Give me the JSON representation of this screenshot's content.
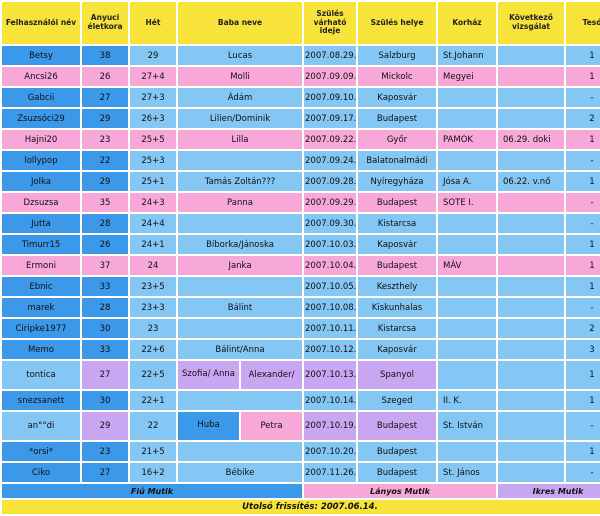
{
  "colors": {
    "header": "#f7e33a",
    "fiu": "#84c6f4",
    "lany": "#f7a7d8",
    "ikres": "#c9a6f2",
    "blue": "#3c98e8"
  },
  "headers": [
    "Felhasználói név",
    "Anyuci életkora",
    "Hét",
    "Baba neve",
    "Szülés várható ideje",
    "Szülés helye",
    "Korház",
    "Következő vizsgálat",
    "Tesó"
  ],
  "rows": [
    {
      "user": "Betsy",
      "age": "38",
      "week": "29",
      "baby": "Lucas",
      "date": "2007.08.29.",
      "place": "Salzburg",
      "hospital": "St.Johann",
      "exam": "",
      "siblings": "1",
      "type": "fiu"
    },
    {
      "user": "Ancsi26",
      "age": "26",
      "week": "27+4",
      "baby": "Molli",
      "date": "2007.09.09.",
      "place": "Mickolc",
      "hospital": "Megyei",
      "exam": "",
      "siblings": "1",
      "type": "lany"
    },
    {
      "user": "Gabcii",
      "age": "27",
      "week": "27+3",
      "baby": "Ádám",
      "date": "2007.09.10.",
      "place": "Kaposvár",
      "hospital": "",
      "exam": "",
      "siblings": "-",
      "type": "fiu"
    },
    {
      "user": "Zsuzsóci29",
      "age": "29",
      "week": "26+3",
      "baby": "Lilien/Dominik",
      "date": "2007.09.17.",
      "place": "Budapest",
      "hospital": "",
      "exam": "",
      "siblings": "2",
      "type": "fiu"
    },
    {
      "user": "Hajni20",
      "age": "23",
      "week": "25+5",
      "baby": "Lilla",
      "date": "2007.09.22.",
      "place": "Győr",
      "hospital": "PAMOK",
      "exam": "06.29. doki",
      "siblings": "1",
      "type": "lany"
    },
    {
      "user": "lollypop",
      "age": "22",
      "week": "25+3",
      "baby": "",
      "date": "2007.09.24.",
      "place": "Balatonalmádi",
      "hospital": "",
      "exam": "",
      "siblings": "-",
      "type": "fiu"
    },
    {
      "user": "Jolka",
      "age": "29",
      "week": "25+1",
      "baby": "Tamás Zoltán???",
      "date": "2007.09.28.",
      "place": "Nyíregyháza",
      "hospital": "Jósa A.",
      "exam": "06.22. v.nő",
      "siblings": "1",
      "type": "fiu"
    },
    {
      "user": "Dzsuzsa",
      "age": "35",
      "week": "24+3",
      "baby": "Panna",
      "date": "2007.09.29.",
      "place": "Budapest",
      "hospital": "SOTE I.",
      "exam": "",
      "siblings": "-",
      "type": "lany"
    },
    {
      "user": "Jutta",
      "age": "28",
      "week": "24+4",
      "baby": "",
      "date": "2007.09.30.",
      "place": "Kistarcsa",
      "hospital": "",
      "exam": "",
      "siblings": "-",
      "type": "fiu"
    },
    {
      "user": "Timurr15",
      "age": "26",
      "week": "24+1",
      "baby": "Bíborka/Jánoska",
      "date": "2007.10.03.",
      "place": "Kaposvár",
      "hospital": "",
      "exam": "",
      "siblings": "1",
      "type": "fiu"
    },
    {
      "user": "Ermoni",
      "age": "37",
      "week": "24",
      "baby": "Janka",
      "date": "2007.10.04.",
      "place": "Budapest",
      "hospital": "MÁV",
      "exam": "",
      "siblings": "1",
      "type": "lany"
    },
    {
      "user": "Ebnic",
      "age": "33",
      "week": "23+5",
      "baby": "",
      "date": "2007.10.05.",
      "place": "Keszthely",
      "hospital": "",
      "exam": "",
      "siblings": "1",
      "type": "fiu"
    },
    {
      "user": "marek",
      "age": "28",
      "week": "23+3",
      "baby": "Bálint",
      "date": "2007.10.08.",
      "place": "Kiskunhalas",
      "hospital": "",
      "exam": "",
      "siblings": "-",
      "type": "fiu"
    },
    {
      "user": "Ciripke1977",
      "age": "30",
      "week": "23",
      "baby": "",
      "date": "2007.10.11.",
      "place": "Kistarcsa",
      "hospital": "",
      "exam": "",
      "siblings": "2",
      "type": "fiu"
    },
    {
      "user": "Memo",
      "age": "33",
      "week": "22+6",
      "baby": "Bálint/Anna",
      "date": "2007.10.12.",
      "place": "Kaposvár",
      "hospital": "",
      "exam": "",
      "siblings": "3",
      "type": "fiu"
    },
    {
      "user": "tontica",
      "age": "27",
      "week": "22+5",
      "baby_a": "Szofia/ Anna",
      "baby_b": "Alexander/",
      "date": "2007.10.13.",
      "place": "Spanyol",
      "hospital": "",
      "exam": "",
      "siblings": "1",
      "type": "ikres"
    },
    {
      "user": "snezsanett",
      "age": "30",
      "week": "22+1",
      "baby": "",
      "date": "2007.10.14.",
      "place": "Szeged",
      "hospital": "II. K.",
      "exam": "",
      "siblings": "1",
      "type": "fiu"
    },
    {
      "user": "an°°di",
      "age": "29",
      "week": "22",
      "baby_a": "Huba",
      "baby_b": "Petra",
      "date": "2007.10.19.",
      "place": "Budapest",
      "hospital": "St. István",
      "exam": "",
      "siblings": "-",
      "type": "ikres"
    },
    {
      "user": "*orsi*",
      "age": "23",
      "week": "21+5",
      "baby": "",
      "date": "2007.10.20.",
      "place": "Budapest",
      "hospital": "",
      "exam": "",
      "siblings": "1",
      "type": "fiu"
    },
    {
      "user": "Ciko",
      "age": "27",
      "week": "16+2",
      "baby": "Bébike",
      "date": "2007.11.26.",
      "place": "Budapest",
      "hospital": "St. János",
      "exam": "",
      "siblings": "-",
      "type": "fiu"
    }
  ],
  "legend": {
    "fiu": "Fiú Mutik",
    "lany": "Lányos Mutik",
    "ikres": "Ikres Mutik"
  },
  "footer": "Utolsó frissítés: 2007.06.14."
}
